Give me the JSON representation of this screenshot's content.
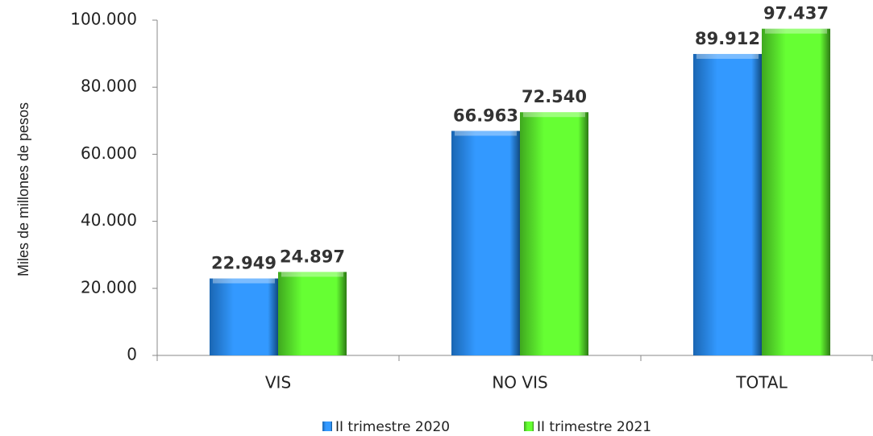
{
  "chart_data": {
    "type": "bar",
    "y_label": "Miles de millones de pesos",
    "categories": [
      "VIS",
      "NO VIS",
      "TOTAL"
    ],
    "series": [
      {
        "name": "II trimestre 2020",
        "color": "#3399ff",
        "values": [
          22949,
          66963,
          89912
        ],
        "value_labels": [
          "22.949",
          "66.963",
          "89.912"
        ]
      },
      {
        "name": "II trimestre 2021",
        "color": "#66ff33",
        "values": [
          24897,
          72540,
          97437
        ],
        "value_labels": [
          "24.897",
          "72.540",
          "97.437"
        ]
      }
    ],
    "ylim": [
      0,
      100000
    ],
    "yticks": [
      0,
      {
        "value": 20000,
        "label": "20.000"
      },
      {
        "value": 40000,
        "label": "40.000"
      },
      {
        "value": 60000,
        "label": "60.000"
      },
      {
        "value": 80000,
        "label": "80.000"
      },
      {
        "value": 100000,
        "label": "100.000"
      }
    ],
    "legend": "bottom"
  }
}
